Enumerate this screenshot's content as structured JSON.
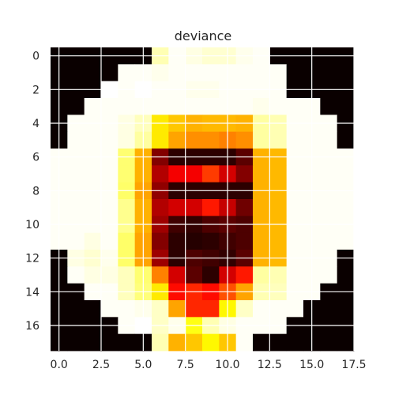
{
  "chart_data": {
    "type": "heatmap",
    "title": "deviance",
    "xlabel": "",
    "ylabel": "",
    "colormap": "hot",
    "value_range": [
      0,
      1
    ],
    "grid": true,
    "grid_color": "#ffffff",
    "x_ticks": [
      "0.0",
      "2.5",
      "5.0",
      "7.5",
      "10.0",
      "12.5",
      "15.0",
      "17.5"
    ],
    "y_ticks": [
      "0",
      "2",
      "4",
      "6",
      "8",
      "10",
      "12",
      "14",
      "16"
    ],
    "matrix": [
      [
        0.0,
        0.0,
        0.0,
        0.0,
        0.0,
        0.0,
        0.92,
        0.99,
        0.97,
        0.95,
        0.95,
        0.98,
        0.99,
        0.0,
        0.0,
        0.0,
        0.0,
        0.0
      ],
      [
        0.0,
        0.0,
        0.0,
        0.0,
        0.99,
        0.99,
        0.98,
        0.99,
        0.99,
        0.99,
        0.99,
        0.99,
        0.99,
        0.99,
        0.0,
        0.0,
        0.0,
        0.0
      ],
      [
        0.0,
        0.0,
        0.0,
        1.0,
        0.99,
        1.0,
        0.99,
        0.99,
        0.98,
        0.98,
        0.99,
        0.99,
        0.99,
        0.99,
        0.0,
        0.0,
        0.0,
        0.0
      ],
      [
        0.0,
        0.0,
        0.99,
        0.99,
        0.99,
        0.99,
        0.99,
        0.99,
        0.99,
        0.99,
        0.99,
        0.99,
        0.98,
        0.99,
        0.99,
        0.99,
        0.0,
        0.0
      ],
      [
        0.0,
        0.99,
        0.99,
        0.99,
        0.97,
        0.93,
        0.7,
        0.65,
        0.62,
        0.63,
        0.63,
        0.62,
        0.9,
        0.92,
        0.99,
        0.99,
        0.99,
        0.0
      ],
      [
        0.0,
        0.99,
        0.99,
        0.99,
        0.97,
        0.9,
        0.7,
        0.6,
        0.57,
        0.57,
        0.55,
        0.57,
        0.9,
        0.92,
        0.99,
        0.99,
        0.99,
        0.0
      ],
      [
        0.99,
        0.99,
        0.99,
        0.99,
        0.85,
        0.62,
        0.18,
        0.05,
        0.05,
        0.05,
        0.05,
        0.12,
        0.62,
        0.63,
        0.99,
        0.99,
        0.99,
        0.99
      ],
      [
        0.99,
        0.99,
        0.99,
        0.99,
        0.85,
        0.62,
        0.25,
        0.35,
        0.35,
        0.45,
        0.3,
        0.18,
        0.62,
        0.63,
        0.99,
        0.99,
        0.99,
        0.99
      ],
      [
        0.99,
        0.99,
        0.99,
        0.99,
        0.84,
        0.6,
        0.2,
        0.05,
        0.05,
        0.05,
        0.05,
        0.05,
        0.62,
        0.63,
        0.99,
        0.99,
        0.99,
        0.99
      ],
      [
        0.99,
        0.99,
        0.99,
        0.99,
        0.88,
        0.62,
        0.25,
        0.3,
        0.3,
        0.4,
        0.28,
        0.15,
        0.62,
        0.63,
        0.99,
        0.99,
        0.99,
        0.99
      ],
      [
        0.99,
        0.99,
        0.99,
        0.99,
        0.88,
        0.62,
        0.22,
        0.08,
        0.06,
        0.1,
        0.12,
        0.1,
        0.62,
        0.63,
        0.99,
        0.99,
        0.99,
        0.99
      ],
      [
        0.99,
        0.99,
        0.97,
        0.99,
        0.84,
        0.6,
        0.18,
        0.05,
        0.04,
        0.05,
        0.08,
        0.1,
        0.62,
        0.63,
        0.99,
        0.99,
        0.99,
        0.99
      ],
      [
        0.0,
        0.97,
        0.95,
        0.98,
        0.84,
        0.6,
        0.22,
        0.05,
        0.1,
        0.08,
        0.06,
        0.12,
        0.62,
        0.63,
        0.99,
        0.99,
        0.99,
        0.0
      ],
      [
        0.0,
        0.99,
        0.97,
        0.97,
        0.93,
        0.85,
        0.55,
        0.3,
        0.12,
        0.05,
        0.3,
        0.4,
        0.9,
        0.92,
        0.99,
        0.99,
        0.99,
        0.0
      ],
      [
        0.0,
        0.0,
        0.99,
        0.99,
        0.93,
        0.86,
        0.7,
        0.38,
        0.42,
        0.38,
        0.48,
        0.6,
        0.92,
        0.93,
        0.99,
        0.99,
        0.0,
        0.0
      ],
      [
        0.0,
        0.0,
        0.0,
        0.99,
        0.99,
        0.98,
        0.94,
        0.6,
        0.42,
        0.42,
        0.72,
        0.94,
        0.99,
        0.99,
        0.99,
        0.0,
        0.0,
        0.0
      ],
      [
        0.0,
        0.0,
        0.0,
        0.0,
        0.99,
        1.0,
        0.94,
        0.98,
        0.75,
        0.92,
        0.97,
        0.99,
        0.99,
        0.99,
        0.0,
        0.0,
        0.0,
        0.0
      ],
      [
        0.0,
        0.0,
        0.0,
        0.0,
        0.0,
        0.0,
        0.92,
        0.62,
        0.65,
        0.72,
        0.65,
        0.99,
        0.0,
        0.0,
        0.0,
        0.0,
        0.0,
        0.0
      ]
    ]
  }
}
